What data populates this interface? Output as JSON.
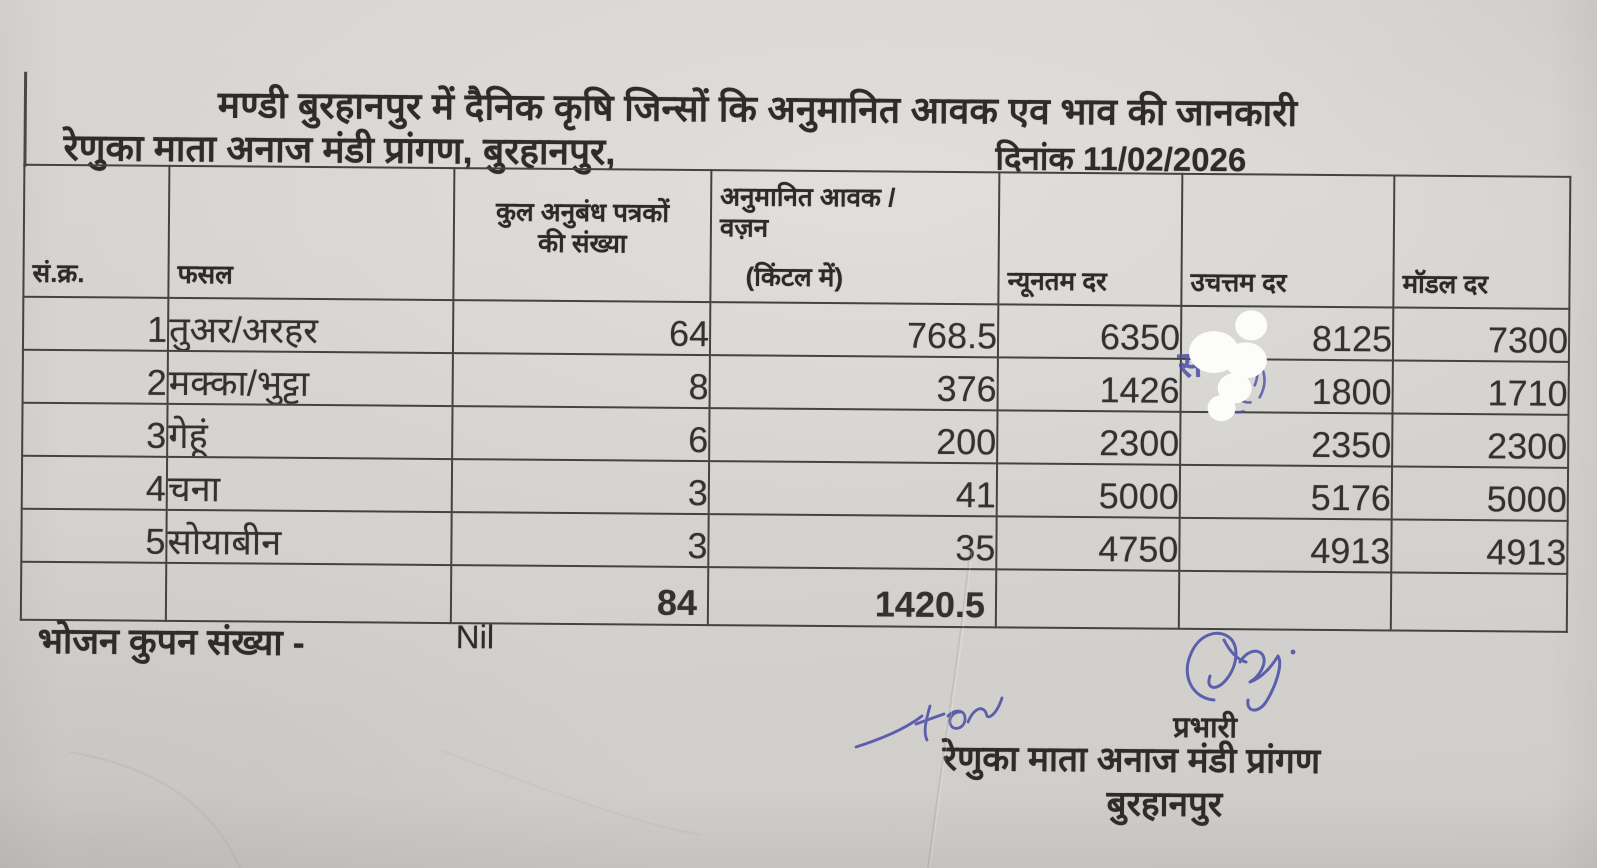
{
  "document": {
    "title_line1": "मण्डी बुरहानपुर में दैनिक कृषि जिन्सों कि अनुमानित आवक एव भाव की जानकारी",
    "title_line2": "रेणुका माता अनाज मंडी प्रांगण, बुरहानपुर,",
    "date_label": "दिनांक 11/02/2026",
    "table": {
      "headers": {
        "sn": "सं.क्र.",
        "crop": "फसल",
        "contracts_line1": "कुल अनुबंध पत्रकों",
        "contracts_line2": "की संख्या",
        "arrival_line1": "अनुमानित आवक /",
        "arrival_line2": "वज़न",
        "arrival_line3": "(किंटल में)",
        "min_rate": "न्यूनतम दर",
        "max_rate": "उचत्तम दर",
        "modal_rate": "मॉडल दर"
      },
      "rows": [
        {
          "sn": "1",
          "crop": "तुअर/अरहर",
          "contracts": "64",
          "arrival": "768.5",
          "min": "6350",
          "max": "8125",
          "modal": "7300"
        },
        {
          "sn": "2",
          "crop": "मक्का/भुट्टा",
          "contracts": "8",
          "arrival": "376",
          "min": "1426",
          "max": "1800",
          "modal": "1710"
        },
        {
          "sn": "3",
          "crop": "गेहूं",
          "contracts": "6",
          "arrival": "200",
          "min": "2300",
          "max": "2350",
          "modal": "2300"
        },
        {
          "sn": "4",
          "crop": "चना",
          "contracts": "3",
          "arrival": "41",
          "min": "5000",
          "max": "5176",
          "modal": "5000"
        },
        {
          "sn": "5",
          "crop": "सोयाबीन",
          "contracts": "3",
          "arrival": "35",
          "min": "4750",
          "max": "4913",
          "modal": "4913"
        }
      ],
      "totals": {
        "contracts": "84",
        "arrival": "1420.5"
      }
    },
    "footer": {
      "coupon_label": "भोजन कुपन संख्या -",
      "coupon_value": "Nil",
      "signature_designation": "प्रभारी",
      "signature_org": "रेणुका माता अनाज मंडी प्रांगण",
      "signature_city": "बुरहानपुर"
    },
    "annotations": {
      "hidden_pen_text": "सं",
      "handwritten_note": "for"
    },
    "colors": {
      "paper": "#d5d3d0",
      "border": "#45433f",
      "text": "#2e2c29",
      "ink_blue": "#4b4fa6",
      "whiteout": "#fcfcfb"
    }
  }
}
